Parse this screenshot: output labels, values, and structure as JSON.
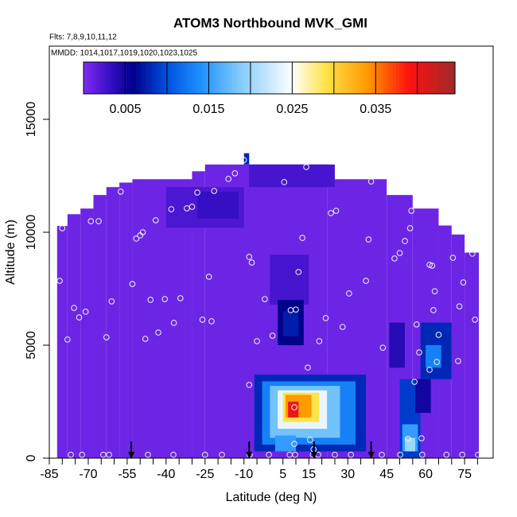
{
  "chart_data": {
    "type": "heatmap",
    "title": "ATOM3 Northbound MVK_GMI",
    "subtitle": "Flts: 7,8,9,10,11,12",
    "annotation": "MMDD: 1014,1017,1019,1020,1023,1025",
    "xlabel": "Latitude (deg N)",
    "ylabel": "Altitude (m)",
    "xlim": [
      -85,
      86
    ],
    "ylim": [
      0,
      18240
    ],
    "xticks": [
      -85,
      -70,
      -55,
      -40,
      -25,
      -10,
      5,
      15,
      30,
      45,
      60,
      75
    ],
    "xminorticks": [
      -80,
      -75,
      -65,
      -60,
      -50,
      -45,
      -35,
      -30,
      -20,
      -15,
      -5,
      0,
      10,
      20,
      25,
      35,
      40,
      50,
      55,
      65,
      70,
      80
    ],
    "yticks": [
      0,
      5000,
      10000,
      15000
    ],
    "colorscale": [
      [
        0,
        "#7f2cf0"
      ],
      [
        0.003,
        "#3a10c8"
      ],
      [
        0.006,
        "#00008b"
      ],
      [
        0.01,
        "#0050e0"
      ],
      [
        0.014,
        "#1e90ff"
      ],
      [
        0.019,
        "#87cefa"
      ],
      [
        0.025,
        "#ffffff"
      ],
      [
        0.029,
        "#ffe34a"
      ],
      [
        0.034,
        "#ff9a00"
      ],
      [
        0.039,
        "#ff1010"
      ],
      [
        0.0445,
        "#9e2a2a"
      ]
    ],
    "colorbar": {
      "lim": [
        0,
        0.0445
      ],
      "ticks": [
        0.005,
        0.015,
        0.025,
        0.035
      ],
      "breaks": [
        0.005,
        0.01,
        0.015,
        0.02,
        0.025,
        0.03,
        0.035,
        0.04
      ]
    },
    "cells": [
      {
        "lat": [
          -82,
          -78
        ],
        "alt": [
          0,
          10280
        ],
        "value": 0.0008
      },
      {
        "lat": [
          -78,
          -73
        ],
        "alt": [
          0,
          10800
        ],
        "value": 0.0008
      },
      {
        "lat": [
          -73,
          -68
        ],
        "alt": [
          0,
          11050
        ],
        "value": 0.0008
      },
      {
        "lat": [
          -68,
          -63
        ],
        "alt": [
          0,
          11650
        ],
        "value": 0.0008
      },
      {
        "lat": [
          -63,
          -58
        ],
        "alt": [
          0,
          12000
        ],
        "value": 0.0008
      },
      {
        "lat": [
          -58,
          -53
        ],
        "alt": [
          0,
          12200
        ],
        "value": 0.0008
      },
      {
        "lat": [
          -53,
          -30
        ],
        "alt": [
          0,
          12350
        ],
        "value": 0.0008
      },
      {
        "lat": [
          -30,
          -25
        ],
        "alt": [
          0,
          12700
        ],
        "value": 0.0008
      },
      {
        "lat": [
          -25,
          22
        ],
        "alt": [
          0,
          13000
        ],
        "value": 0.0008
      },
      {
        "lat": [
          22,
          45
        ],
        "alt": [
          0,
          12350
        ],
        "value": 0.0008
      },
      {
        "lat": [
          45,
          55
        ],
        "alt": [
          0,
          11650
        ],
        "value": 0.0008
      },
      {
        "lat": [
          55,
          65
        ],
        "alt": [
          0,
          11050
        ],
        "value": 0.0008
      },
      {
        "lat": [
          65,
          70
        ],
        "alt": [
          0,
          10300
        ],
        "value": 0.0008
      },
      {
        "lat": [
          70,
          75
        ],
        "alt": [
          0,
          9900
        ],
        "value": 0.0008
      },
      {
        "lat": [
          75,
          80.5
        ],
        "alt": [
          0,
          9100
        ],
        "value": 0.0008
      },
      {
        "lat": [
          -40,
          -10
        ],
        "alt": [
          10200,
          12000
        ],
        "value": 0.0022
      },
      {
        "lat": [
          -28,
          -12
        ],
        "alt": [
          10600,
          11800
        ],
        "value": 0.0032
      },
      {
        "lat": [
          -8,
          25
        ],
        "alt": [
          12000,
          13000
        ],
        "value": 0.0025
      },
      {
        "lat": [
          -10,
          -8
        ],
        "alt": [
          13000,
          13500
        ],
        "value": 0.008
      },
      {
        "lat": [
          0,
          15
        ],
        "alt": [
          6800,
          9000
        ],
        "value": 0.0025
      },
      {
        "lat": [
          3,
          13
        ],
        "alt": [
          5000,
          7000
        ],
        "value": 0.006
      },
      {
        "lat": [
          5,
          11
        ],
        "alt": [
          5400,
          6500
        ],
        "value": 0.0075
      },
      {
        "lat": [
          -6,
          37
        ],
        "alt": [
          300,
          3700
        ],
        "value": 0.008
      },
      {
        "lat": [
          -3,
          33
        ],
        "alt": [
          600,
          3400
        ],
        "value": 0.013
      },
      {
        "lat": [
          0,
          27
        ],
        "alt": [
          900,
          3200
        ],
        "value": 0.018
      },
      {
        "lat": [
          3,
          22
        ],
        "alt": [
          1300,
          3000
        ],
        "value": 0.024
      },
      {
        "lat": [
          5,
          19
        ],
        "alt": [
          1600,
          2900
        ],
        "value": 0.029
      },
      {
        "lat": [
          6,
          16
        ],
        "alt": [
          1800,
          2800
        ],
        "value": 0.034
      },
      {
        "lat": [
          7,
          11
        ],
        "alt": [
          1800,
          2500
        ],
        "value": 0.04
      },
      {
        "lat": [
          2,
          10
        ],
        "alt": [
          300,
          1000
        ],
        "value": 0.015
      },
      {
        "lat": [
          50,
          58
        ],
        "alt": [
          0,
          3500
        ],
        "value": 0.009
      },
      {
        "lat": [
          51,
          57
        ],
        "alt": [
          300,
          1500
        ],
        "value": 0.015
      },
      {
        "lat": [
          52,
          56
        ],
        "alt": [
          300,
          900
        ],
        "value": 0.02
      },
      {
        "lat": [
          56,
          62
        ],
        "alt": [
          2000,
          3500
        ],
        "value": 0.005
      },
      {
        "lat": [
          58,
          70
        ],
        "alt": [
          3500,
          6000
        ],
        "value": 0.008
      },
      {
        "lat": [
          60,
          66
        ],
        "alt": [
          4000,
          5000
        ],
        "value": 0.013
      },
      {
        "lat": [
          46,
          52
        ],
        "alt": [
          4000,
          6000
        ],
        "value": 0.004
      }
    ],
    "points": {
      "lat": [
        -80,
        -81,
        -78,
        -75.5,
        -73.5,
        -71,
        -69,
        -66,
        -63,
        -61,
        -57.5,
        -53,
        -51.5,
        -50,
        -49,
        -48,
        -46,
        -44,
        -43,
        -40.5,
        -38,
        -37,
        -34.5,
        -32,
        -30,
        -28,
        -26,
        -23.5,
        -22.5,
        -21.5,
        -16,
        -13.5,
        -10,
        -8,
        -7,
        -5,
        -2,
        1,
        5.5,
        8,
        10,
        11,
        12.5,
        14,
        19,
        21.5,
        23.5,
        25.5,
        30.5,
        28,
        37,
        38,
        39,
        43.5,
        48,
        50,
        52,
        54,
        54.5,
        56.5,
        57.5,
        61.5,
        62.5,
        63.5,
        63,
        65,
        70.5,
        73,
        74.5,
        78,
        79,
        -76.7,
        -72.4,
        -64.2,
        -62,
        -47,
        -37.2,
        -25,
        -18.5,
        -7.8,
        -0.4,
        7.6,
        9.7,
        16.5,
        18.6,
        25,
        31.2,
        43.1,
        50.2,
        58.7,
        68,
        74.1,
        80.2,
        9.4,
        15.5,
        16.8,
        53.2,
        58.4,
        9.4,
        14.6,
        -8,
        55.7,
        72.5,
        64.3,
        61.5
      ],
      "alt": [
        10180,
        7850,
        5250,
        6650,
        6230,
        6480,
        10490,
        10490,
        5350,
        6940,
        11800,
        7710,
        9720,
        9860,
        10000,
        5280,
        7010,
        10530,
        5560,
        7040,
        11020,
        5990,
        7080,
        11060,
        11130,
        11760,
        6130,
        8030,
        6060,
        11830,
        12360,
        12610,
        13200,
        8910,
        8660,
        5180,
        7040,
        5420,
        12220,
        6550,
        6580,
        8240,
        9750,
        12890,
        5180,
        6200,
        10850,
        10950,
        7290,
        5810,
        7850,
        9680,
        12250,
        4890,
        8840,
        9080,
        9610,
        10180,
        10950,
        5920,
        4680,
        8560,
        8520,
        7390,
        6550,
        5460,
        8870,
        6720,
        7780,
        9050,
        6130,
        150,
        150,
        150,
        150,
        150,
        150,
        150,
        150,
        150,
        150,
        150,
        150,
        150,
        150,
        150,
        150,
        150,
        150,
        150,
        150,
        150,
        150,
        630,
        810,
        390,
        850,
        880,
        2250,
        4010,
        3240,
        3380,
        4300,
        4260,
        3910
      ]
    },
    "arrows_lat": [
      -53.4,
      -8,
      17,
      39
    ]
  }
}
